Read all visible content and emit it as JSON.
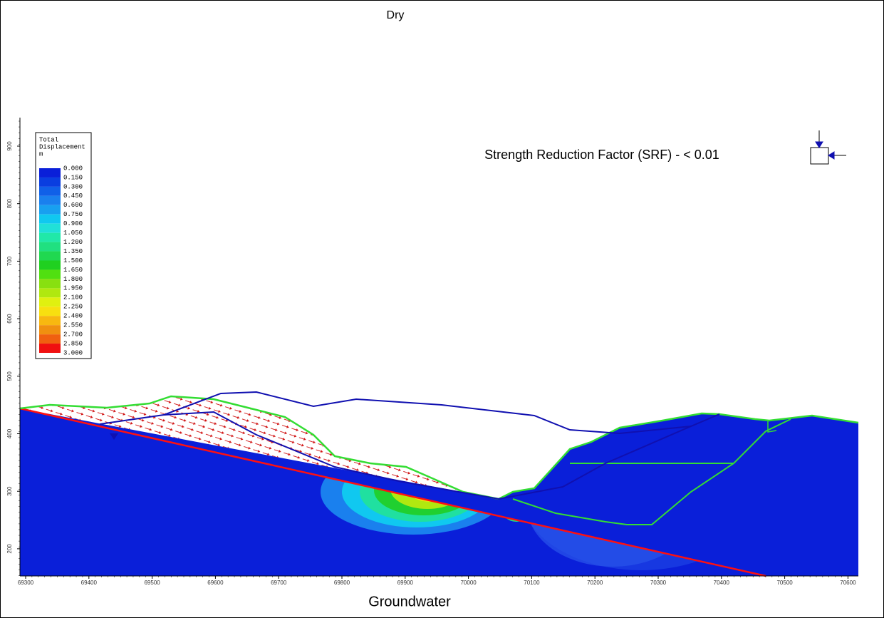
{
  "title": "Dry",
  "caption": "Groundwater",
  "annotation": "Strength Reduction Factor (SRF) - < 0.01",
  "legend": {
    "title": [
      "Total",
      "Displacement",
      "m"
    ],
    "labels": [
      "0.000",
      "0.150",
      "0.300",
      "0.450",
      "0.600",
      "0.750",
      "0.900",
      "1.050",
      "1.200",
      "1.350",
      "1.500",
      "1.650",
      "1.800",
      "1.950",
      "2.100",
      "2.250",
      "2.400",
      "2.550",
      "2.700",
      "2.850",
      "3.000"
    ],
    "colors": [
      "#0a1fd9",
      "#0a3ee0",
      "#1060e8",
      "#1a80ee",
      "#18a0f0",
      "#10c8f0",
      "#20e0d8",
      "#20e8a8",
      "#20e080",
      "#20d850",
      "#20d020",
      "#50e010",
      "#88e010",
      "#b0e810",
      "#e0f010",
      "#f8e010",
      "#f8b810",
      "#f09010",
      "#f06010",
      "#f01010"
    ]
  },
  "axes": {
    "x_ticks": [
      69300,
      69400,
      69500,
      69600,
      69700,
      69800,
      69900,
      70000,
      70100,
      70200,
      70300,
      70400,
      70500,
      70600
    ],
    "y_ticks": [
      900,
      800,
      700,
      600,
      500,
      400,
      300,
      200
    ]
  }
}
